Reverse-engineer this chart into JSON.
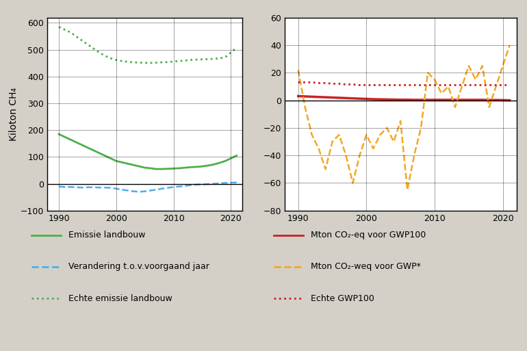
{
  "background_color": "#d4d0c8",
  "plot_bg": "#ffffff",
  "fig_width": 7.7,
  "fig_height": 5.13,
  "left_ylim": [
    -100,
    620
  ],
  "right_ylim": [
    -80,
    60
  ],
  "xlim": [
    1988,
    2022
  ],
  "xticks": [
    1990,
    2000,
    2010,
    2020
  ],
  "left_yticks": [
    -100,
    0,
    100,
    200,
    300,
    400,
    500,
    600
  ],
  "right_yticks": [
    -80,
    -60,
    -40,
    -20,
    0,
    20,
    40,
    60
  ],
  "ylabel_left": "Kiloton CH₄",
  "colors": {
    "green_solid": "#4daf4a",
    "blue_dashed": "#4daeee",
    "green_dotted": "#4daf4a",
    "red_solid": "#cc2222",
    "orange_dashed": "#f5a623",
    "red_dotted": "#cc2222"
  },
  "legend_entries_left": [
    {
      "label": "Emissie landbouw",
      "color": "#4daf4a",
      "ls": "solid"
    },
    {
      "label": "Verandering t.o.v.voorgaand jaar",
      "color": "#4daeee",
      "ls": "dashed"
    },
    {
      "label": "Echte emissie landbouw",
      "color": "#4daf4a",
      "ls": "dotted"
    }
  ],
  "legend_entries_right": [
    {
      "label": "Mton CO₂-eq voor GWP100",
      "color": "#cc2222",
      "ls": "solid"
    },
    {
      "label": "Mton CO₂-weq voor GWP*",
      "color": "#f5a623",
      "ls": "dashed"
    },
    {
      "label": "Echte GWP100",
      "color": "#cc2222",
      "ls": "dotted"
    }
  ]
}
